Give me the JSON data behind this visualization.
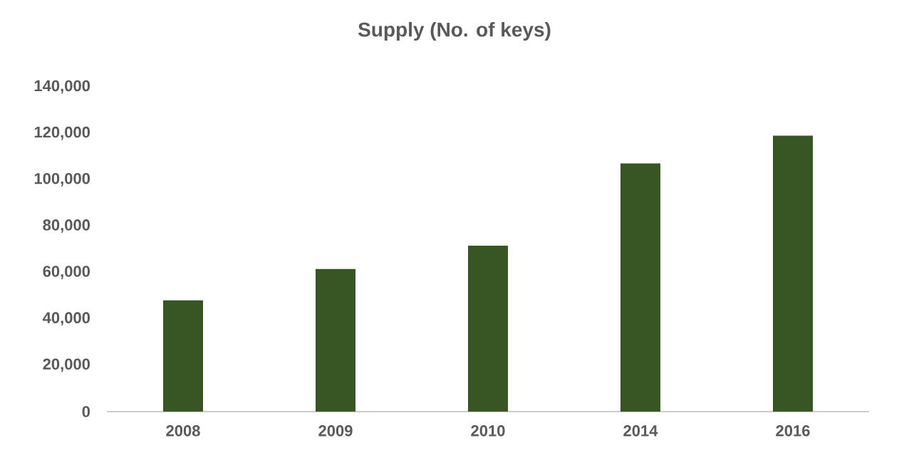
{
  "chart_data": {
    "type": "bar",
    "title": "Supply (No. of keys)",
    "categories": [
      "2008",
      "2009",
      "2010",
      "2014",
      "2016"
    ],
    "values": [
      48000,
      61500,
      71500,
      107000,
      119000
    ],
    "color": "#375623",
    "ylim": [
      0,
      140000
    ],
    "yticks": [
      {
        "value": 0,
        "label": "0"
      },
      {
        "value": 20000,
        "label": "20,000"
      },
      {
        "value": 40000,
        "label": "40,000"
      },
      {
        "value": 60000,
        "label": "60,000"
      },
      {
        "value": 80000,
        "label": "80,000"
      },
      {
        "value": 100000,
        "label": "100,000"
      },
      {
        "value": 120000,
        "label": "120,000"
      },
      {
        "value": 140000,
        "label": "140,000"
      }
    ],
    "grid": false
  }
}
